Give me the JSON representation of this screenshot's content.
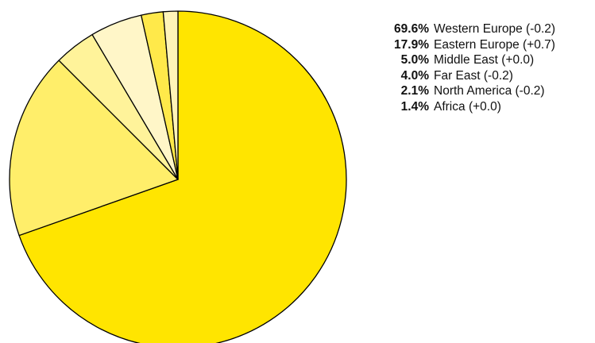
{
  "chart_data": {
    "type": "pie",
    "title": "",
    "slices": [
      {
        "label": "Western Europe",
        "change": "(-0.2)",
        "value": 69.6,
        "display": "69.6%",
        "color": "#FFE500"
      },
      {
        "label": "Eastern Europe",
        "change": "(+0.7)",
        "value": 17.9,
        "display": "17.9%",
        "color": "#FFEE6A"
      },
      {
        "label": "Middle East",
        "change": "(+0.0)",
        "value": 5.0,
        "display": "5.0%",
        "color": "#FFF6C8"
      },
      {
        "label": "Far East",
        "change": "(-0.2)",
        "value": 4.0,
        "display": "4.0%",
        "color": "#FFF39A"
      },
      {
        "label": "North America",
        "change": "(-0.2)",
        "value": 2.1,
        "display": "2.1%",
        "color": "#FFE94A"
      },
      {
        "label": "Africa",
        "change": "(+0.0)",
        "value": 1.4,
        "display": "1.4%",
        "color": "#FFF4B8"
      }
    ],
    "slice_draw_order": [
      0,
      1,
      3,
      2,
      4,
      5
    ],
    "stroke_color": "#000000",
    "legend_placement": "top-right"
  }
}
